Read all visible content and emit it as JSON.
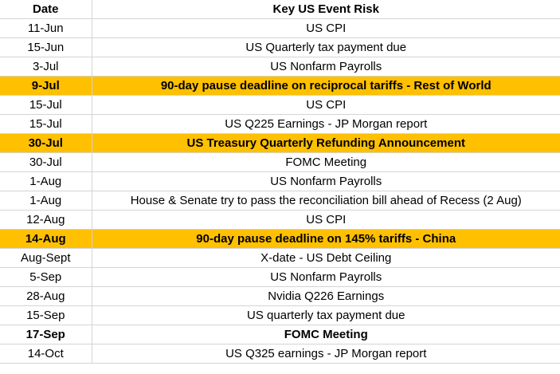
{
  "table": {
    "headers": {
      "date": "Date",
      "event": "Key US Event Risk"
    },
    "rows": [
      {
        "date": "11-Jun",
        "event": "US CPI",
        "style": ""
      },
      {
        "date": "15-Jun",
        "event": "US Quarterly tax payment due",
        "style": ""
      },
      {
        "date": "3-Jul",
        "event": "US Nonfarm Payrolls",
        "style": ""
      },
      {
        "date": "9-Jul",
        "event": "90-day pause deadline on reciprocal tariffs - Rest of World",
        "style": "highlight"
      },
      {
        "date": "15-Jul",
        "event": "US CPI",
        "style": ""
      },
      {
        "date": "15-Jul",
        "event": "US Q225 Earnings - JP Morgan report",
        "style": ""
      },
      {
        "date": "30-Jul",
        "event": "US Treasury Quarterly Refunding Announcement",
        "style": "highlight"
      },
      {
        "date": "30-Jul",
        "event": "FOMC Meeting",
        "style": ""
      },
      {
        "date": "1-Aug",
        "event": "US Nonfarm Payrolls",
        "style": ""
      },
      {
        "date": "1-Aug",
        "event": "House & Senate try to pass the reconciliation bill ahead of Recess (2 Aug)",
        "style": ""
      },
      {
        "date": "12-Aug",
        "event": "US CPI",
        "style": ""
      },
      {
        "date": "14-Aug",
        "event": "90-day pause deadline on 145% tariffs - China",
        "style": "highlight"
      },
      {
        "date": "Aug-Sept",
        "event": "X-date - US Debt Ceiling",
        "style": ""
      },
      {
        "date": "5-Sep",
        "event": "US Nonfarm Payrolls",
        "style": ""
      },
      {
        "date": "28-Aug",
        "event": "Nvidia Q226 Earnings",
        "style": ""
      },
      {
        "date": "15-Sep",
        "event": "US quarterly tax payment due",
        "style": ""
      },
      {
        "date": "17-Sep",
        "event": "FOMC Meeting",
        "style": "bold"
      },
      {
        "date": "14-Oct",
        "event": "US Q325 earnings - JP Morgan report",
        "style": ""
      }
    ],
    "colors": {
      "highlight": "#ffc000",
      "grid": "#d4d4d4"
    }
  }
}
